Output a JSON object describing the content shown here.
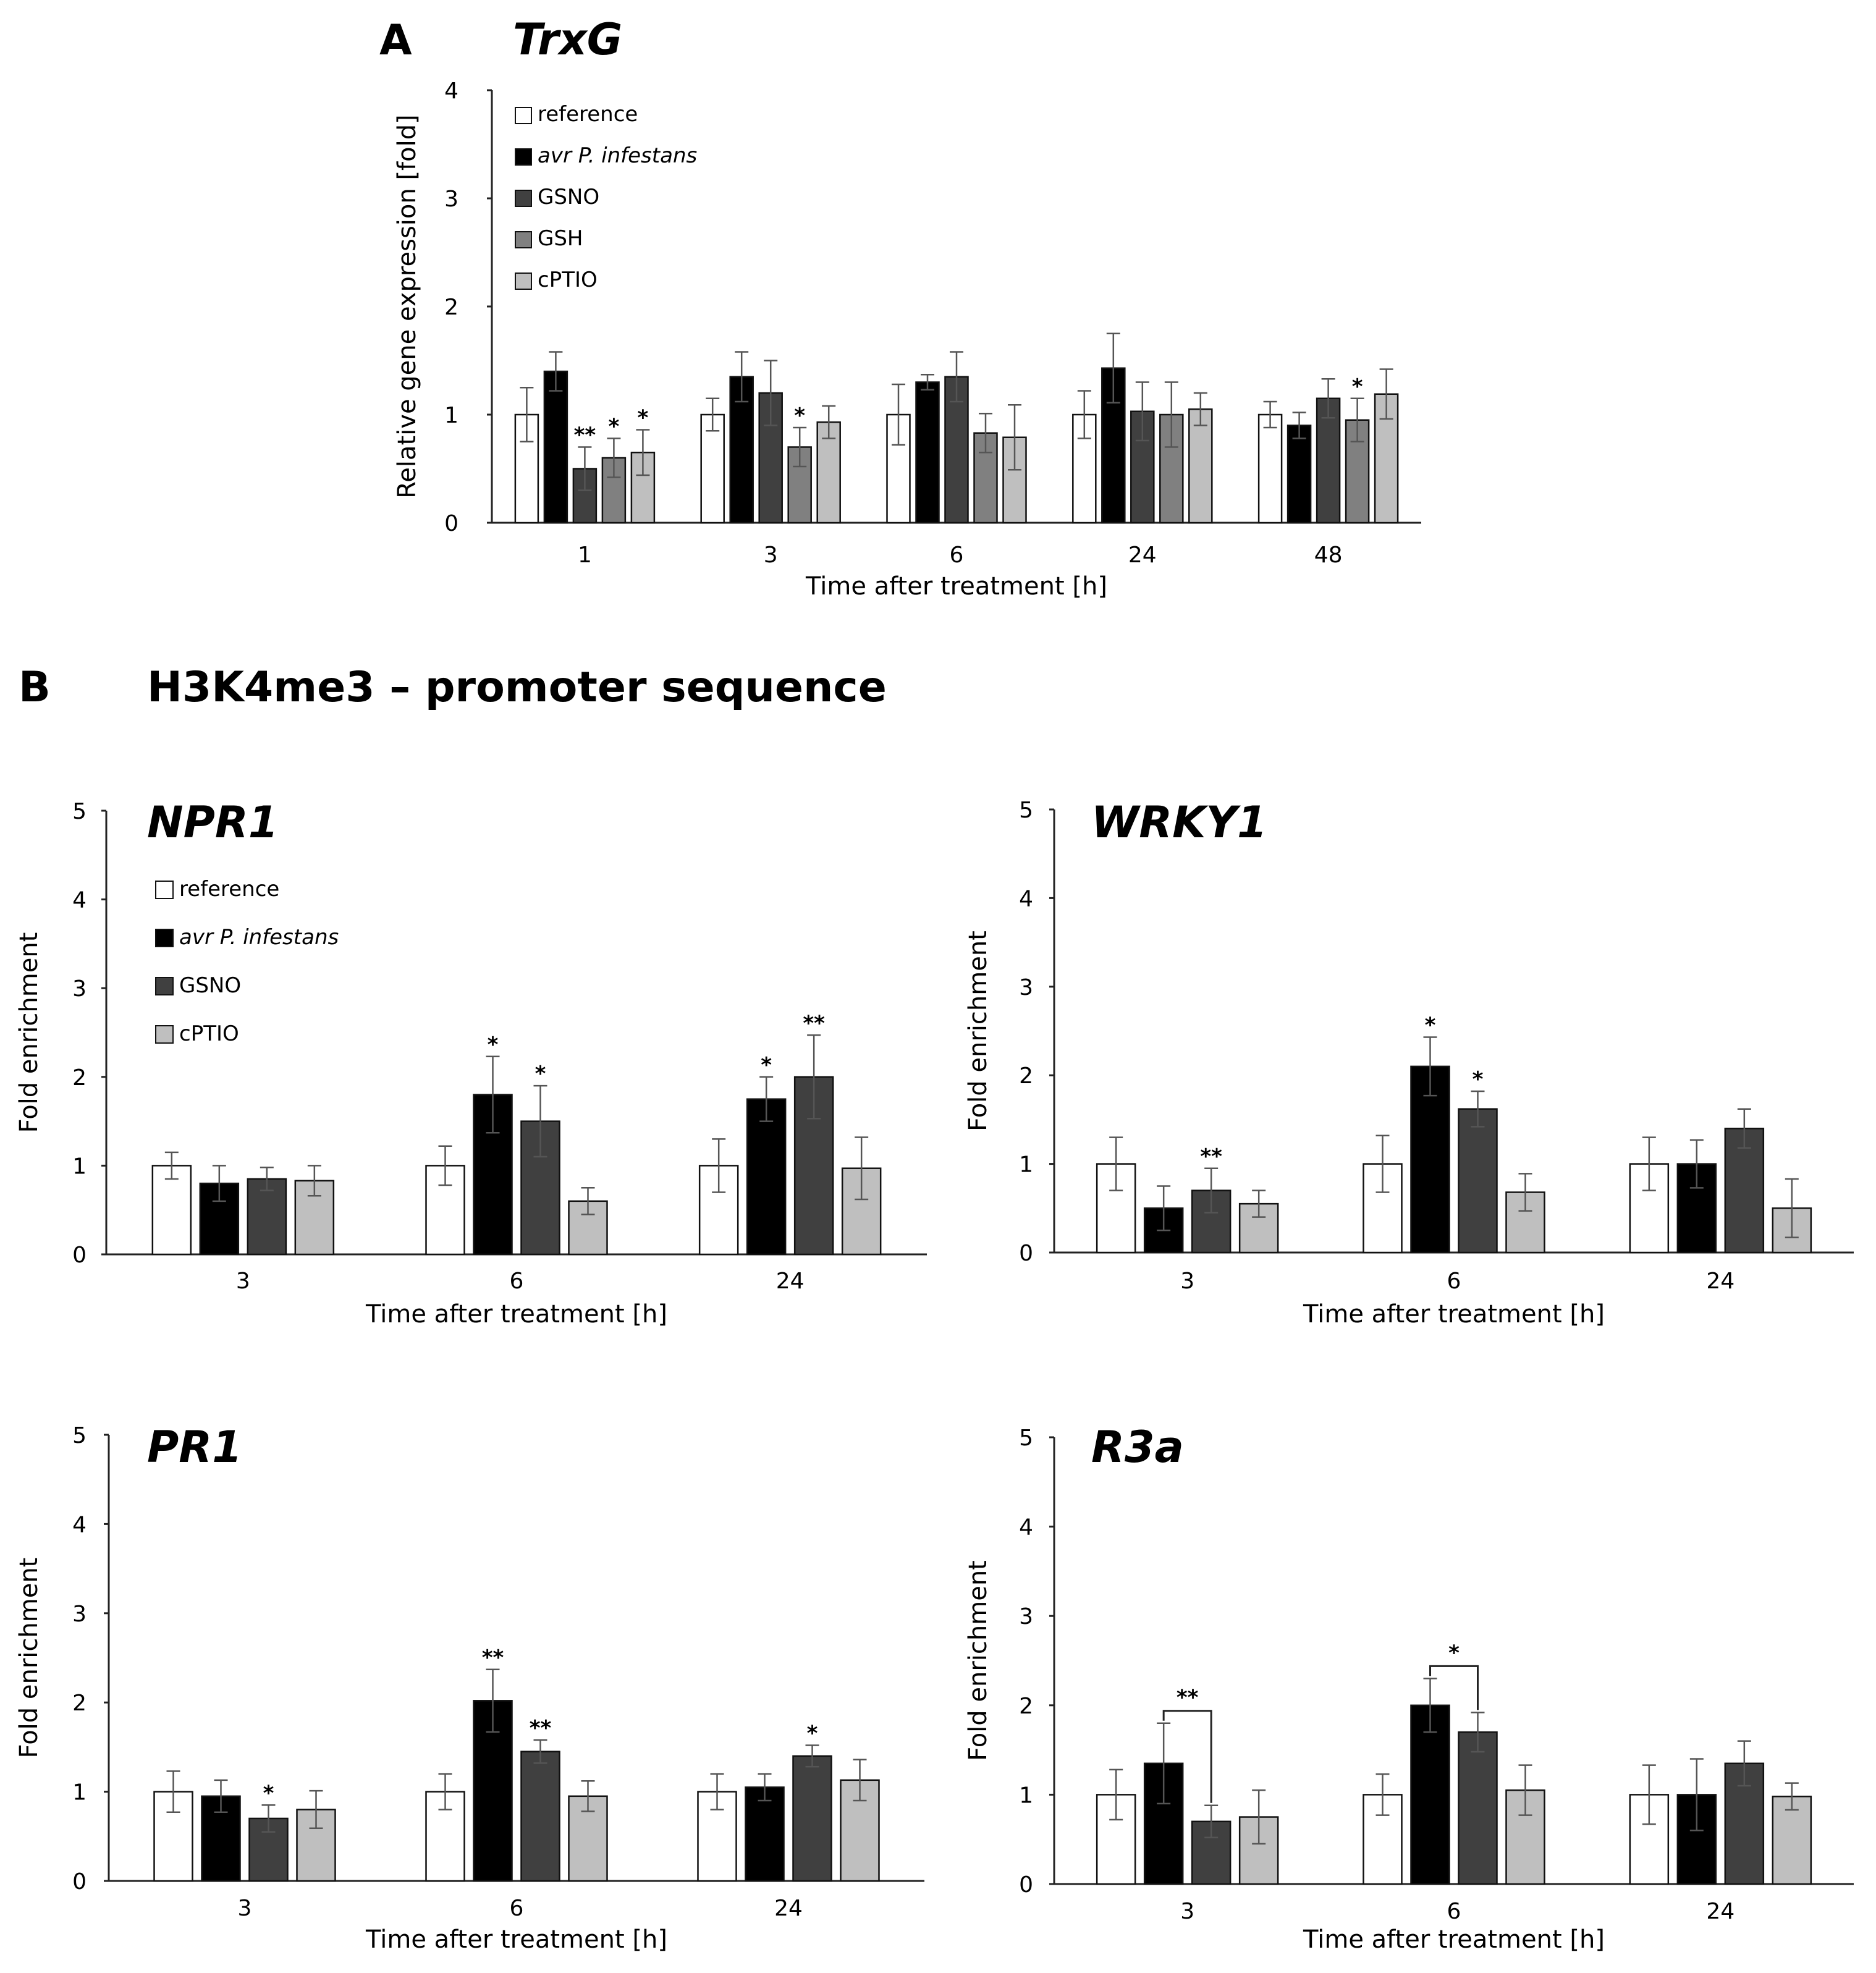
{
  "panels": {
    "a": {
      "letter": "A"
    },
    "b": {
      "letter": "B",
      "title": "H3K4me3 – promoter sequence"
    }
  },
  "colors": {
    "reference": "#ffffff",
    "avr": "#000000",
    "gsno": "#404040",
    "gsh": "#808080",
    "cptio": "#bfbfbf",
    "error": "#555555"
  },
  "chart_data": [
    {
      "id": "trxg",
      "type": "bar",
      "title": "TrxG",
      "xlabel": "Time after treatment [h]",
      "ylabel": "Relative gene expression [fold]",
      "ylim": [
        0,
        4
      ],
      "yticks": [
        "0",
        "1",
        "2",
        "3",
        "4"
      ],
      "categories": [
        "1",
        "3",
        "6",
        "24",
        "48"
      ],
      "legend": [
        "reference",
        "avr P. infestans",
        "GSNO",
        "GSH",
        "cPTIO"
      ],
      "series": [
        {
          "name": "reference",
          "color_key": "reference",
          "values": [
            1.0,
            1.0,
            1.0,
            1.0,
            1.0
          ],
          "errors": [
            0.25,
            0.15,
            0.28,
            0.22,
            0.12
          ],
          "sig": [
            "",
            "",
            "",
            "",
            ""
          ]
        },
        {
          "name": "avr P. infestans",
          "color_key": "avr",
          "values": [
            1.4,
            1.35,
            1.3,
            1.43,
            0.9
          ],
          "errors": [
            0.18,
            0.23,
            0.07,
            0.32,
            0.12
          ],
          "sig": [
            "",
            "",
            "",
            "",
            ""
          ]
        },
        {
          "name": "GSNO",
          "color_key": "gsno",
          "values": [
            0.5,
            1.2,
            1.35,
            1.03,
            1.15
          ],
          "errors": [
            0.2,
            0.3,
            0.23,
            0.27,
            0.18
          ],
          "sig": [
            "**",
            "",
            "",
            "",
            ""
          ]
        },
        {
          "name": "GSH",
          "color_key": "gsh",
          "values": [
            0.6,
            0.7,
            0.83,
            1.0,
            0.95
          ],
          "errors": [
            0.18,
            0.18,
            0.18,
            0.3,
            0.2
          ],
          "sig": [
            "*",
            "*",
            "",
            "",
            "*"
          ]
        },
        {
          "name": "cPTIO",
          "color_key": "cptio",
          "values": [
            0.65,
            0.93,
            0.79,
            1.05,
            1.19
          ],
          "errors": [
            0.21,
            0.15,
            0.3,
            0.15,
            0.23
          ],
          "sig": [
            "*",
            "",
            "",
            "",
            ""
          ]
        }
      ]
    },
    {
      "id": "npr1",
      "type": "bar",
      "title": "NPR1",
      "xlabel": "Time after treatment [h]",
      "ylabel": "Fold enrichment",
      "ylim": [
        0,
        5
      ],
      "yticks": [
        "0",
        "1",
        "2",
        "3",
        "4",
        "5"
      ],
      "categories": [
        "3",
        "6",
        "24"
      ],
      "legend": [
        "reference",
        "avr P. infestans",
        "GSNO",
        "cPTIO"
      ],
      "series": [
        {
          "name": "reference",
          "color_key": "reference",
          "values": [
            1.0,
            1.0,
            1.0
          ],
          "errors": [
            0.15,
            0.22,
            0.3
          ],
          "sig": [
            "",
            "",
            ""
          ]
        },
        {
          "name": "avr P. infestans",
          "color_key": "avr",
          "values": [
            0.8,
            1.8,
            1.75
          ],
          "errors": [
            0.2,
            0.43,
            0.25
          ],
          "sig": [
            "",
            "*",
            "*"
          ]
        },
        {
          "name": "GSNO",
          "color_key": "gsno",
          "values": [
            0.85,
            1.5,
            2.0
          ],
          "errors": [
            0.13,
            0.4,
            0.47
          ],
          "sig": [
            "",
            "*",
            "**"
          ]
        },
        {
          "name": "cPTIO",
          "color_key": "cptio",
          "values": [
            0.83,
            0.6,
            0.97
          ],
          "errors": [
            0.17,
            0.15,
            0.35
          ],
          "sig": [
            "",
            "",
            ""
          ]
        }
      ]
    },
    {
      "id": "wrky1",
      "type": "bar",
      "title": "WRKY1",
      "xlabel": "Time after treatment [h]",
      "ylabel": "Fold enrichment",
      "ylim": [
        0,
        5
      ],
      "yticks": [
        "0",
        "1",
        "2",
        "3",
        "4",
        "5"
      ],
      "categories": [
        "3",
        "6",
        "24"
      ],
      "legend": [],
      "series": [
        {
          "name": "reference",
          "color_key": "reference",
          "values": [
            1.0,
            1.0,
            1.0
          ],
          "errors": [
            0.3,
            0.32,
            0.3
          ],
          "sig": [
            "",
            "",
            ""
          ]
        },
        {
          "name": "avr P. infestans",
          "color_key": "avr",
          "values": [
            0.5,
            2.1,
            1.0
          ],
          "errors": [
            0.25,
            0.33,
            0.27
          ],
          "sig": [
            "",
            "*",
            ""
          ]
        },
        {
          "name": "GSNO",
          "color_key": "gsno",
          "values": [
            0.7,
            1.62,
            1.4
          ],
          "errors": [
            0.25,
            0.2,
            0.22
          ],
          "sig": [
            "**",
            "*",
            ""
          ]
        },
        {
          "name": "cPTIO",
          "color_key": "cptio",
          "values": [
            0.55,
            0.68,
            0.5
          ],
          "errors": [
            0.15,
            0.21,
            0.33
          ],
          "sig": [
            "",
            "",
            ""
          ]
        }
      ]
    },
    {
      "id": "pr1",
      "type": "bar",
      "title": "PR1",
      "xlabel": "Time after treatment [h]",
      "ylabel": "Fold enrichment",
      "ylim": [
        0,
        5
      ],
      "yticks": [
        "0",
        "1",
        "2",
        "3",
        "4",
        "5"
      ],
      "categories": [
        "3",
        "6",
        "24"
      ],
      "legend": [],
      "series": [
        {
          "name": "reference",
          "color_key": "reference",
          "values": [
            1.0,
            1.0,
            1.0
          ],
          "errors": [
            0.23,
            0.2,
            0.2
          ],
          "sig": [
            "",
            "",
            ""
          ]
        },
        {
          "name": "avr P. infestans",
          "color_key": "avr",
          "values": [
            0.95,
            2.02,
            1.05
          ],
          "errors": [
            0.18,
            0.35,
            0.15
          ],
          "sig": [
            "",
            "**",
            ""
          ]
        },
        {
          "name": "GSNO",
          "color_key": "gsno",
          "values": [
            0.7,
            1.45,
            1.4
          ],
          "errors": [
            0.15,
            0.13,
            0.12
          ],
          "sig": [
            "*",
            "**",
            "*"
          ]
        },
        {
          "name": "cPTIO",
          "color_key": "cptio",
          "values": [
            0.8,
            0.95,
            1.13
          ],
          "errors": [
            0.21,
            0.17,
            0.23
          ],
          "sig": [
            "",
            "",
            ""
          ]
        }
      ]
    },
    {
      "id": "r3a",
      "type": "bar",
      "title": "R3a",
      "xlabel": "Time after treatment [h]",
      "ylabel": "Fold enrichment",
      "ylim": [
        0,
        5
      ],
      "yticks": [
        "0",
        "1",
        "2",
        "3",
        "4",
        "5"
      ],
      "categories": [
        "3",
        "6",
        "24"
      ],
      "legend": [],
      "series": [
        {
          "name": "reference",
          "color_key": "reference",
          "values": [
            1.0,
            1.0,
            1.0
          ],
          "errors": [
            0.28,
            0.23,
            0.33
          ],
          "sig": [
            "",
            "",
            ""
          ]
        },
        {
          "name": "avr P. infestans",
          "color_key": "avr",
          "values": [
            1.35,
            2.0,
            1.0
          ],
          "errors": [
            0.45,
            0.3,
            0.4
          ],
          "sig": [
            "",
            "",
            ""
          ]
        },
        {
          "name": "GSNO",
          "color_key": "gsno",
          "values": [
            0.7,
            1.7,
            1.35
          ],
          "errors": [
            0.18,
            0.22,
            0.25
          ],
          "sig": [
            "",
            "",
            ""
          ]
        },
        {
          "name": "cPTIO",
          "color_key": "cptio",
          "values": [
            0.75,
            1.05,
            0.98
          ],
          "errors": [
            0.3,
            0.28,
            0.15
          ],
          "sig": [
            "",
            "",
            ""
          ]
        }
      ],
      "brackets": [
        {
          "category": 0,
          "from_series": 1,
          "to_series": 2,
          "label": "**"
        },
        {
          "category": 1,
          "from_series": 1,
          "to_series": 2,
          "label": "*"
        }
      ]
    }
  ]
}
